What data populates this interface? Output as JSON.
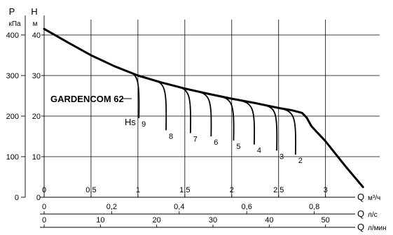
{
  "chart_data": {
    "type": "line",
    "title": "GARDENCOM 62",
    "y_left_pressure": {
      "symbol": "P",
      "unit": "кПа",
      "ticks": [
        0,
        100,
        200,
        300,
        400
      ]
    },
    "y_left_head": {
      "symbol": "H",
      "unit": "м",
      "ticks": [
        0,
        10,
        20,
        30,
        40
      ],
      "ylim": [
        0,
        45
      ]
    },
    "x_axes": [
      {
        "symbol": "Q",
        "unit": "м³/ч",
        "ticks": [
          "0",
          "0,5",
          "1",
          "1,5",
          "2",
          "2,5",
          "3"
        ]
      },
      {
        "symbol": "Q",
        "unit": "л/с",
        "ticks": [
          "0",
          "0,2",
          "0,4",
          "0,6",
          "0,8"
        ]
      },
      {
        "symbol": "Q",
        "unit": "л/мин",
        "ticks": [
          "0",
          "10",
          "20",
          "30",
          "40",
          "50"
        ]
      }
    ],
    "xlim_m3h": [
      0,
      3.6
    ],
    "grid": true,
    "series": [
      {
        "name": "GARDENCOM 62",
        "x": [
          0,
          0.25,
          0.5,
          0.75,
          1.0,
          1.25,
          1.5,
          1.75,
          2.0,
          2.25,
          2.5,
          2.65,
          2.75,
          2.8,
          2.85,
          3.0,
          3.2,
          3.4
        ],
        "y": [
          41.5,
          38.2,
          35.0,
          32.3,
          30.0,
          28.3,
          26.8,
          25.5,
          24.3,
          23.2,
          22.0,
          21.4,
          20.8,
          19.6,
          17.5,
          13.8,
          8.0,
          2.5
        ]
      }
    ],
    "suction_label": "Hs",
    "suction_curves": [
      {
        "label": "9",
        "x0": 0.87,
        "x1": 1.01,
        "y_end": 19.5
      },
      {
        "label": "8",
        "x0": 1.15,
        "x1": 1.3,
        "y_end": 16.5
      },
      {
        "label": "7",
        "x0": 1.4,
        "x1": 1.56,
        "y_end": 15.8
      },
      {
        "label": "6",
        "x0": 1.6,
        "x1": 1.78,
        "y_end": 15.0
      },
      {
        "label": "5",
        "x0": 1.85,
        "x1": 2.02,
        "y_end": 14.0
      },
      {
        "label": "4",
        "x0": 2.05,
        "x1": 2.24,
        "y_end": 13.0
      },
      {
        "label": "3",
        "x0": 2.35,
        "x1": 2.48,
        "y_end": 11.5
      },
      {
        "label": "2",
        "x0": 2.5,
        "x1": 2.68,
        "y_end": 10.5
      }
    ]
  }
}
